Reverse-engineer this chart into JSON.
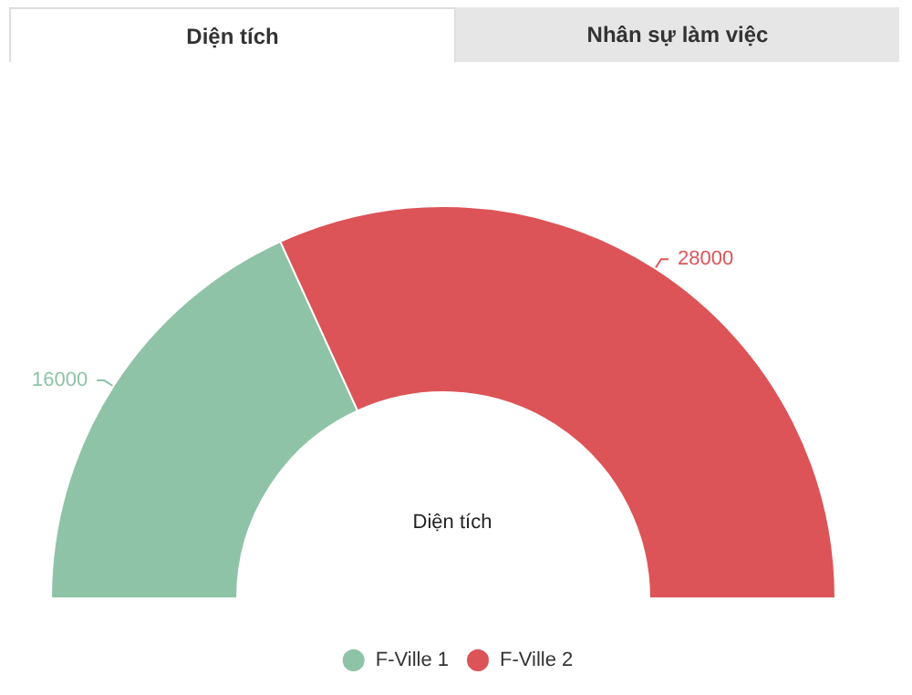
{
  "chart_data": {
    "type": "donut",
    "title": "Diện tích",
    "annotations": [
      "Diện tích",
      "Nhân sự làm việc"
    ],
    "categories": [
      "F-Ville 1",
      "F-Ville 2"
    ],
    "values": [
      16000,
      28000
    ],
    "colors": [
      "#8fc3a7",
      "#dc5457"
    ],
    "data_labels": true,
    "legend": "bottom"
  }
}
